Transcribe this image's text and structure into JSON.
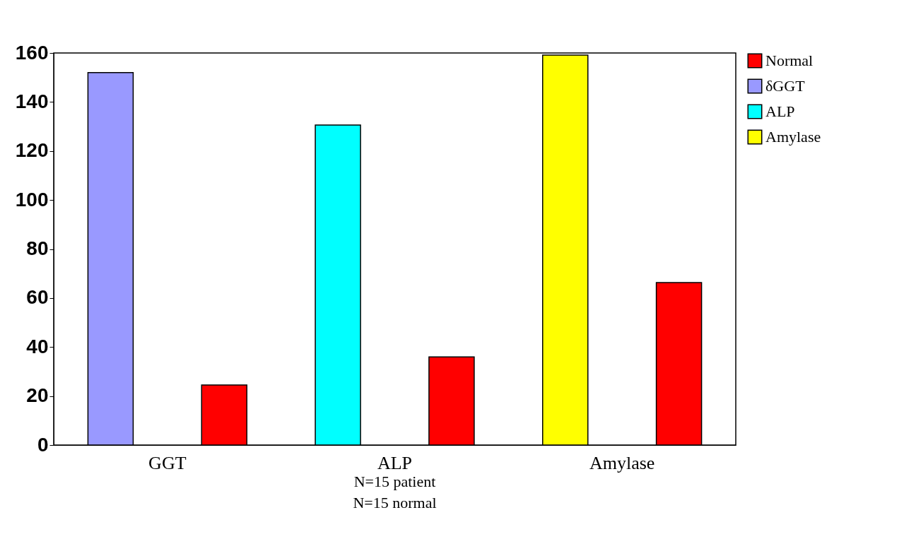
{
  "chart_data": {
    "type": "bar",
    "categories": [
      "GGT",
      "ALP",
      "Amylase"
    ],
    "series": [
      {
        "name": "Normal",
        "color": "#ff0000",
        "values": [
          24.5,
          36,
          66.3
        ]
      },
      {
        "name": "δGGT",
        "color": "#9999ff",
        "values": [
          152,
          null,
          null
        ]
      },
      {
        "name": "ALP",
        "color": "#00ffff",
        "values": [
          null,
          130.6,
          null
        ]
      },
      {
        "name": "Amylase",
        "color": "#ffff00",
        "values": [
          null,
          null,
          159.1
        ]
      }
    ],
    "ylim": [
      0,
      160
    ],
    "yticks": [
      0,
      20,
      40,
      60,
      80,
      100,
      120,
      140,
      160
    ],
    "grid": false,
    "legend": "right",
    "annotations": [
      "N=15 patient",
      "N=15 normal"
    ]
  }
}
